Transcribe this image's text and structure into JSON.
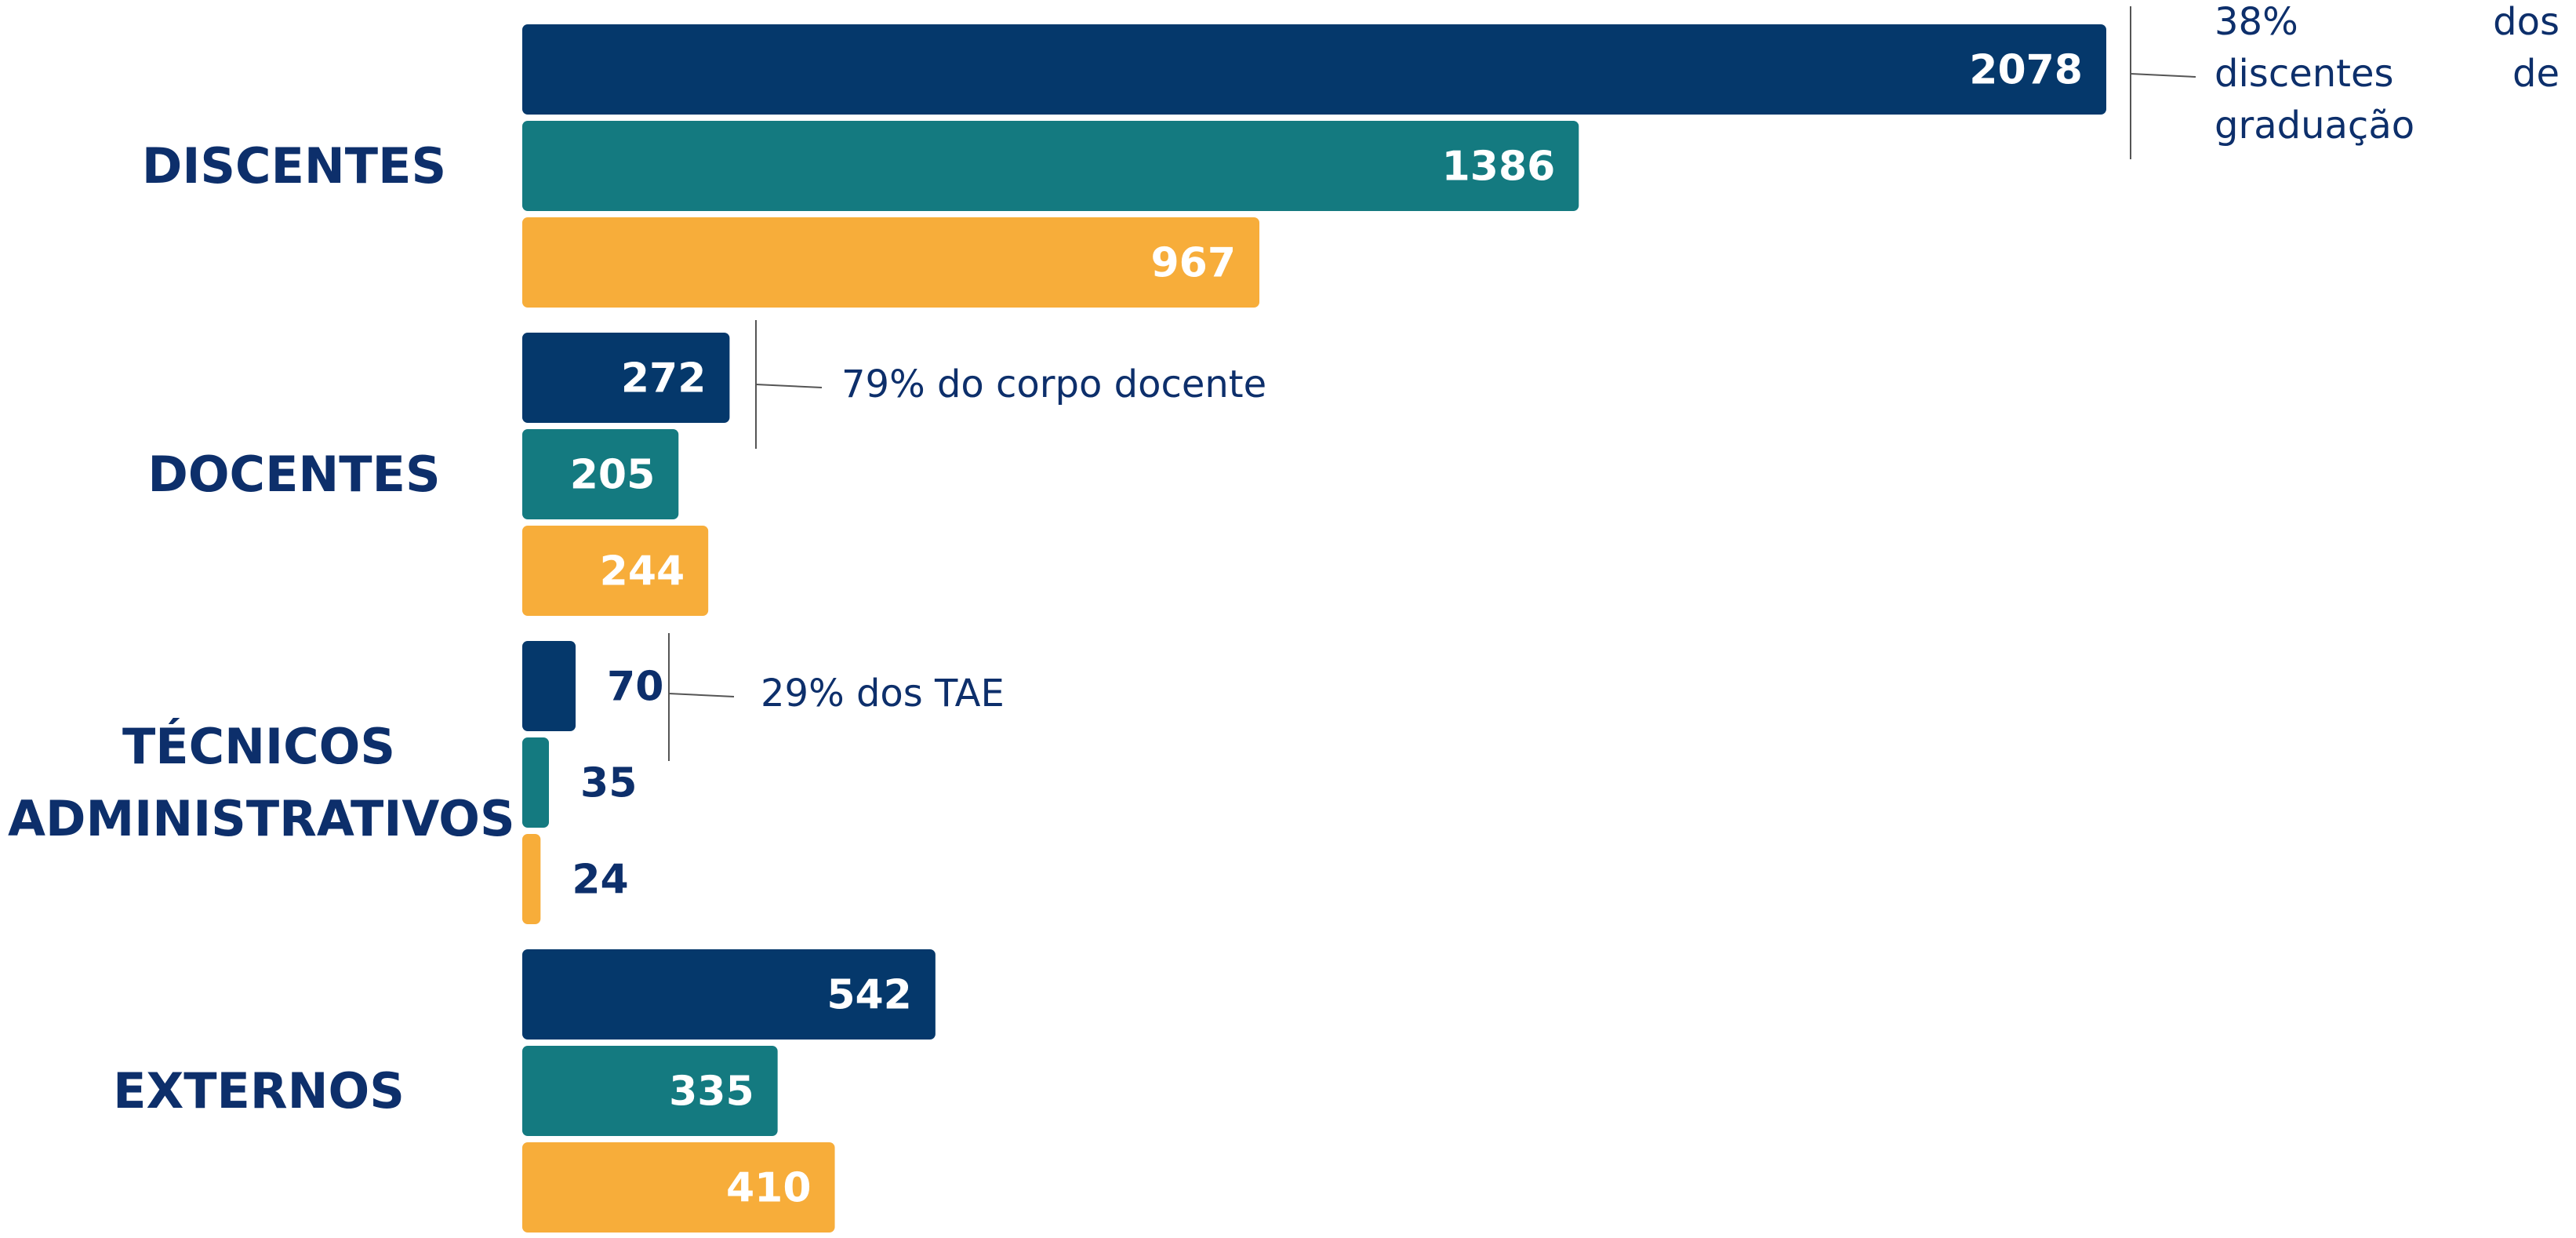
{
  "chart_data": {
    "type": "bar",
    "orientation": "horizontal",
    "categories": [
      "DISCENTES",
      "DOCENTES",
      "TÉCNICOS ADMINISTRATIVOS",
      "EXTERNOS"
    ],
    "series": [
      {
        "color": "#05386b",
        "values": [
          2078,
          272,
          70,
          542
        ]
      },
      {
        "color": "#147a80",
        "values": [
          1386,
          205,
          35,
          335
        ]
      },
      {
        "color": "#f7ad3a",
        "values": [
          967,
          244,
          24,
          410
        ]
      }
    ],
    "annotations": [
      "38% dos discentes de graduação",
      "79% do corpo docente",
      "29% dos TAE"
    ]
  }
}
